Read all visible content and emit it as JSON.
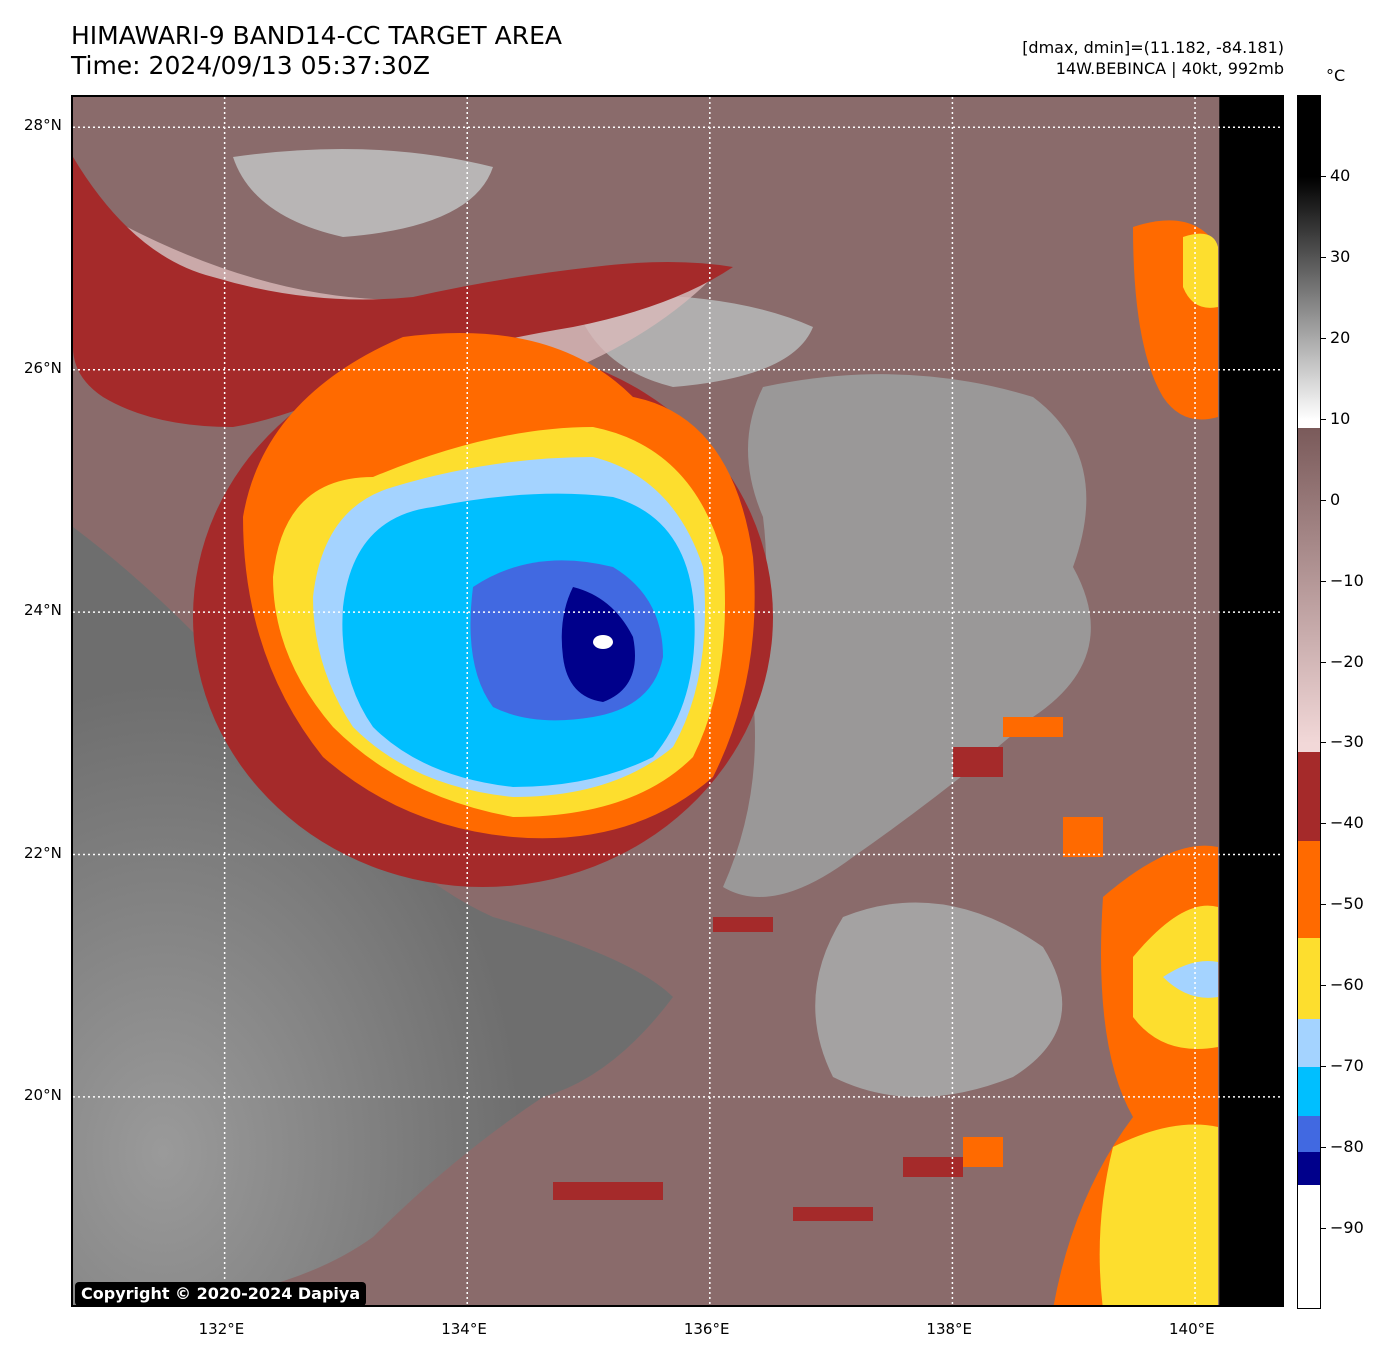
{
  "header": {
    "title_line1": "HIMAWARI-9 BAND14-CC TARGET AREA",
    "title_line2": "Time: 2024/09/13 05:37:30Z",
    "info_line1": "[dmax, dmin]=(11.182, -84.181)",
    "info_line2": "14W.BEBINCA | 40kt, 992mb"
  },
  "map": {
    "lat_labels": [
      "28°N",
      "26°N",
      "24°N",
      "22°N",
      "20°N"
    ],
    "lon_labels": [
      "132°E",
      "134°E",
      "136°E",
      "138°E",
      "140°E"
    ],
    "lat_values": [
      28,
      26,
      24,
      22,
      20
    ],
    "lon_values": [
      132,
      134,
      136,
      138,
      140
    ],
    "lat_range": [
      18.25,
      28.25
    ],
    "lon_range": [
      130.75,
      140.75
    ],
    "no_data_lon_start": 140.2,
    "copyright": "Copyright © 2020-2024 Dapiya"
  },
  "colorbar": {
    "unit": "°C",
    "range": [
      -100,
      50
    ],
    "ticks": [
      "40",
      "30",
      "20",
      "10",
      "0",
      "−10",
      "−20",
      "−30",
      "−40",
      "−50",
      "−60",
      "−70",
      "−80",
      "−90"
    ],
    "tick_values": [
      40,
      30,
      20,
      10,
      0,
      -10,
      -20,
      -30,
      -40,
      -50,
      -60,
      -70,
      -80,
      -90
    ],
    "colors": {
      "warm_black": "#000000",
      "gray": "#8a8a8a",
      "white": "#ffffff",
      "brown": "#7a5a5a",
      "pink": "#f2d8d8",
      "dark_red": "#a52a2a",
      "orange": "#ff6a00",
      "yellow": "#fdde2e",
      "light_blue": "#a4d3ff",
      "cyan_blue": "#00bfff",
      "royal_blue": "#4169e1",
      "navy": "#00008b"
    }
  }
}
